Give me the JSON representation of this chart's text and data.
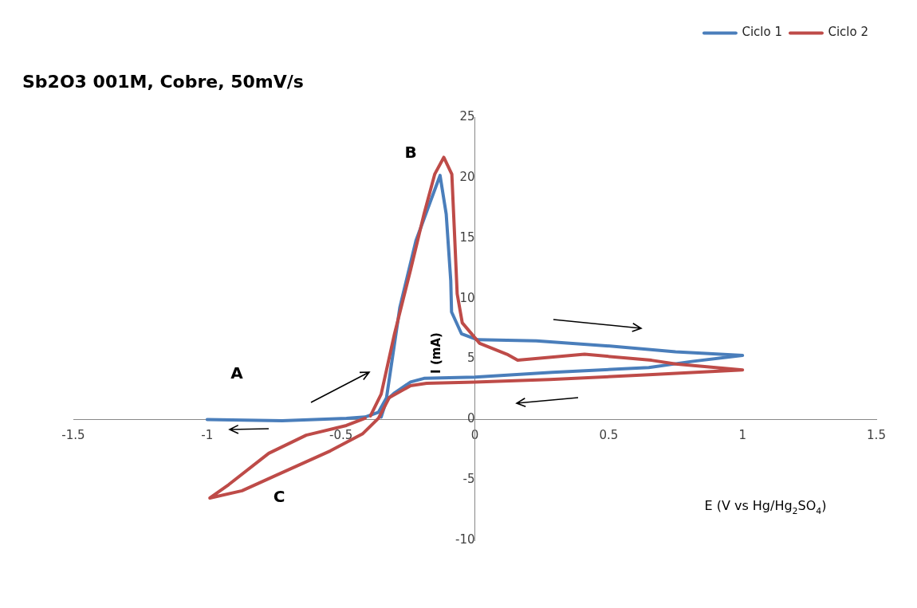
{
  "chart_data": {
    "type": "line",
    "title": "Sb2O3 001M, Cobre, 50mV/s",
    "xlabel": "E (V vs Hg/Hg$_{2}$SO$_{4}$)",
    "ylabel": "I (mA)",
    "xlim": [
      -1.5,
      1.5
    ],
    "xticks": [
      -1.5,
      -1,
      -0.5,
      0,
      0.5,
      1,
      1.5
    ],
    "ylim": [
      -10,
      25
    ],
    "yticks": [
      -10,
      -5,
      0,
      5,
      10,
      15,
      20,
      25
    ],
    "grid": false,
    "legend": "top right",
    "marker": "none",
    "line_style": "solid",
    "series": [
      {
        "name": "Ciclo 1",
        "color": "#4a7ebb",
        "x": [
          -1,
          -0.72,
          -0.48,
          -0.41,
          -0.36,
          -0.33,
          -0.28,
          -0.22,
          -0.14,
          -0.13,
          -0.107,
          -0.09,
          -0.087,
          -0.05,
          0.01,
          0.23,
          0.49,
          0.75,
          1.0,
          0.81,
          0.65,
          0.29,
          0.0,
          -0.19,
          -0.24,
          -0.3,
          -0.33,
          -0.35
        ],
        "values": [
          0,
          -0.1,
          0.1,
          0.2,
          0.6,
          1.8,
          9.3,
          14.8,
          19.6,
          20.2,
          17,
          11.5,
          8.9,
          7.1,
          6.6,
          6.5,
          6.1,
          5.6,
          5.3,
          4.8,
          4.3,
          3.9,
          3.5,
          3.4,
          3.1,
          2.2,
          1.6,
          0.2
        ]
      },
      {
        "name": "Ciclo 2",
        "color": "#be4b48",
        "x": [
          -0.39,
          -0.35,
          -0.3,
          -0.24,
          -0.19,
          -0.15,
          -0.116,
          -0.086,
          -0.077,
          -0.066,
          -0.047,
          0.018,
          0.12,
          0.16,
          0.41,
          0.66,
          0.75,
          1.0,
          0.65,
          0.28,
          0.0,
          -0.18,
          -0.24,
          -0.32,
          -0.36,
          -0.42,
          -0.54,
          -0.75,
          -0.87,
          -0.99,
          -0.92,
          -0.77,
          -0.63,
          -0.48,
          -0.41
        ],
        "values": [
          0.3,
          2.1,
          7.1,
          12.4,
          17,
          20.3,
          21.7,
          20.3,
          15.9,
          10.4,
          8.0,
          6.3,
          5.4,
          4.9,
          5.4,
          4.9,
          4.6,
          4.1,
          3.7,
          3.3,
          3.1,
          3.0,
          2.8,
          1.8,
          0.1,
          -1.2,
          -2.6,
          -4.7,
          -5.9,
          -6.5,
          -5.4,
          -2.8,
          -1.3,
          -0.5,
          0.1
        ]
      }
    ],
    "annotations": [
      "A",
      "B",
      "C"
    ]
  }
}
